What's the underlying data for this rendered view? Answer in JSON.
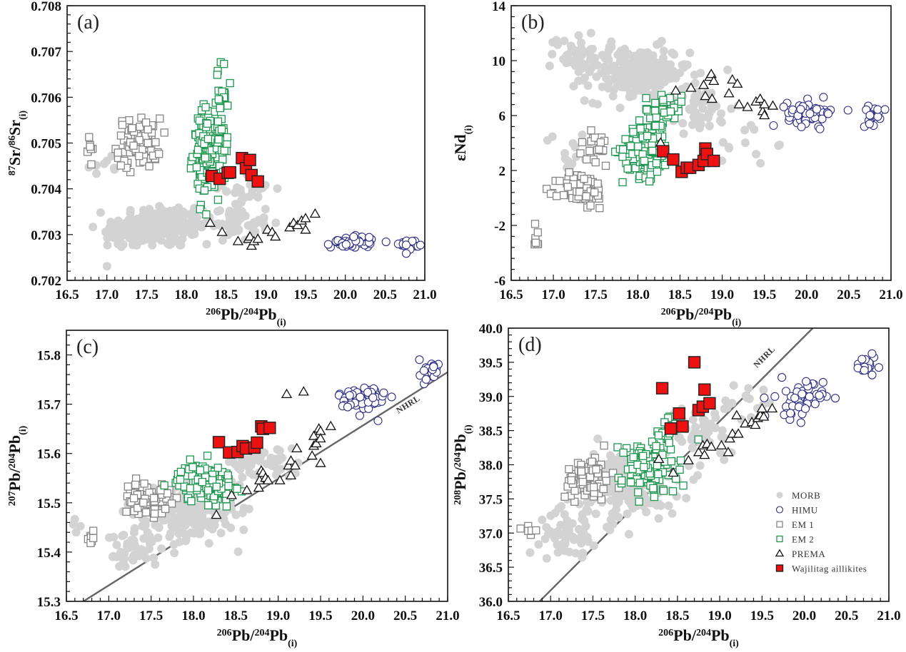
{
  "figure": {
    "legend": {
      "placement": "panel-d-bottom-right",
      "entries": [
        {
          "key": "morb",
          "label": "MORB",
          "marker": "filled-circle",
          "color": "#d3d3d3"
        },
        {
          "key": "himu",
          "label": "HIMU",
          "marker": "open-circle",
          "color": "#2e2e86"
        },
        {
          "key": "em1",
          "label": "EM 1",
          "marker": "open-square",
          "color": "#858585"
        },
        {
          "key": "em2",
          "label": "EM 2",
          "marker": "open-square",
          "color": "#1e9650"
        },
        {
          "key": "prema",
          "label": "PREMA",
          "marker": "open-triangle",
          "color": "#111111"
        },
        {
          "key": "wajilitag",
          "label": "Wajilitag aillikites",
          "marker": "filled-square",
          "color": "#ee1111"
        }
      ]
    }
  },
  "chart_data": [
    {
      "id": "a",
      "type": "scatter",
      "panel_label": "(a)",
      "xlabel": "206Pb/204Pb(i)",
      "ylabel": "87Sr/86Sr(i)",
      "xlim": [
        16.5,
        21.0
      ],
      "ylim": [
        0.702,
        0.708
      ],
      "xticks": [
        "16.5",
        "17.0",
        "17.5",
        "18.0",
        "18.5",
        "19.0",
        "19.5",
        "20.0",
        "20.5",
        "21.0"
      ],
      "yticks": [
        "0.702",
        "0.703",
        "0.704",
        "0.705",
        "0.706",
        "0.707",
        "0.708"
      ],
      "series": {
        "morb": {
          "clusters": [
            [
              17.7,
              0.7032,
              0.55,
              0.00045,
              160
            ],
            [
              17.3,
              0.703,
              0.35,
              0.0003,
              50
            ],
            [
              18.6,
              0.7033,
              0.4,
              0.0004,
              60
            ],
            [
              17.0,
              0.7045,
              0.2,
              0.0004,
              10
            ],
            [
              18.8,
              0.704,
              0.3,
              0.0003,
              20
            ]
          ]
        },
        "himu": {
          "clusters": [
            [
              20.1,
              0.70285,
              0.25,
              0.00012,
              50
            ],
            [
              20.8,
              0.7028,
              0.12,
              0.0001,
              20
            ]
          ]
        },
        "em1": {
          "clusters": [
            [
              17.4,
              0.705,
              0.25,
              0.0005,
              80
            ],
            [
              16.78,
              0.70485,
              0.05,
              0.0002,
              8
            ]
          ]
        },
        "em2": {
          "clusters": [
            [
              18.25,
              0.7048,
              0.15,
              0.0009,
              130
            ],
            [
              18.45,
              0.7055,
              0.06,
              0.0011,
              40
            ]
          ]
        },
        "prema": {
          "points": [
            [
              18.3,
              0.70325
            ],
            [
              18.45,
              0.70305
            ],
            [
              18.65,
              0.70285
            ],
            [
              18.78,
              0.7029
            ],
            [
              18.8,
              0.70295
            ],
            [
              18.82,
              0.70275
            ],
            [
              18.85,
              0.70285
            ],
            [
              18.9,
              0.7029
            ],
            [
              19.02,
              0.7031
            ],
            [
              19.08,
              0.70305
            ],
            [
              19.12,
              0.70295
            ],
            [
              19.3,
              0.70315
            ],
            [
              19.35,
              0.70325
            ],
            [
              19.4,
              0.7032
            ],
            [
              19.45,
              0.7033
            ],
            [
              19.5,
              0.70335
            ],
            [
              19.5,
              0.7031
            ],
            [
              19.62,
              0.70345
            ]
          ]
        },
        "wajilitag": {
          "points": [
            [
              18.32,
              0.70428
            ],
            [
              18.42,
              0.70422
            ],
            [
              18.52,
              0.70435
            ],
            [
              18.55,
              0.70436
            ],
            [
              18.7,
              0.70467
            ],
            [
              18.75,
              0.70445
            ],
            [
              18.8,
              0.70463
            ],
            [
              18.82,
              0.7043
            ],
            [
              18.9,
              0.70416
            ]
          ]
        }
      }
    },
    {
      "id": "b",
      "type": "scatter",
      "panel_label": "(b)",
      "xlabel": "206Pb/204Pb(i)",
      "ylabel": "εNd(i)",
      "xlim": [
        16.5,
        21.0
      ],
      "ylim": [
        -6,
        14
      ],
      "xticks": [
        "16.5",
        "17.0",
        "17.5",
        "18.0",
        "18.5",
        "19.0",
        "19.5",
        "20.0",
        "20.5",
        "21.0"
      ],
      "yticks": [
        "-6",
        "-2",
        "2",
        "6",
        "10",
        "14"
      ],
      "series": {
        "morb": {
          "clusters": [
            [
              18.0,
              9.0,
              0.55,
              1.8,
              220
            ],
            [
              17.3,
              10.5,
              0.3,
              1.5,
              40
            ],
            [
              18.7,
              6.5,
              0.4,
              1.5,
              50
            ],
            [
              17.2,
              3.5,
              0.3,
              2,
              15
            ],
            [
              19.3,
              4,
              0.3,
              1.5,
              12
            ]
          ]
        },
        "himu": {
          "clusters": [
            [
              20.05,
              6.2,
              0.25,
              0.8,
              60
            ],
            [
              20.8,
              6.0,
              0.12,
              0.6,
              18
            ]
          ]
        },
        "em1": {
          "clusters": [
            [
              17.35,
              0.5,
              0.25,
              1.2,
              70
            ],
            [
              17.5,
              3.5,
              0.2,
              1.3,
              20
            ],
            [
              16.8,
              -2.8,
              0.05,
              0.8,
              8
            ]
          ]
        },
        "em2": {
          "clusters": [
            [
              18.1,
              3.5,
              0.25,
              1.8,
              140
            ],
            [
              18.3,
              6.5,
              0.2,
              1.1,
              40
            ]
          ]
        },
        "prema": {
          "points": [
            [
              18.27,
              4.0
            ],
            [
              18.45,
              7.8
            ],
            [
              18.63,
              8.0
            ],
            [
              18.78,
              8.2
            ],
            [
              18.8,
              7.4
            ],
            [
              18.85,
              8.8
            ],
            [
              18.87,
              9.0
            ],
            [
              18.88,
              7.2
            ],
            [
              18.9,
              8.5
            ],
            [
              19.08,
              7.6
            ],
            [
              19.12,
              8.6
            ],
            [
              19.18,
              8.3
            ],
            [
              19.2,
              6.8
            ],
            [
              19.3,
              6.6
            ],
            [
              19.4,
              7.0
            ],
            [
              19.45,
              7.2
            ],
            [
              19.48,
              6.3
            ],
            [
              19.5,
              6.8
            ],
            [
              19.5,
              6.0
            ],
            [
              19.6,
              6.7
            ]
          ]
        },
        "wajilitag": {
          "points": [
            [
              18.3,
              3.4
            ],
            [
              18.42,
              2.8
            ],
            [
              18.52,
              1.9
            ],
            [
              18.58,
              2.2
            ],
            [
              18.62,
              2.2
            ],
            [
              18.72,
              2.4
            ],
            [
              18.78,
              2.7
            ],
            [
              18.8,
              3.6
            ],
            [
              18.82,
              3.2
            ],
            [
              18.9,
              2.7
            ]
          ]
        }
      }
    },
    {
      "id": "c",
      "type": "scatter",
      "panel_label": "(c)",
      "xlabel": "206Pb/204Pb(i)",
      "ylabel": "207Pb/204Pb(i)",
      "xlim": [
        16.5,
        21.0
      ],
      "ylim": [
        15.3,
        15.85
      ],
      "xticks": [
        "16.5",
        "17.0",
        "17.5",
        "18.0",
        "18.5",
        "19.0",
        "19.5",
        "20.0",
        "20.5",
        "21.0"
      ],
      "yticks": [
        "15.3",
        "15.4",
        "15.5",
        "15.6",
        "15.7",
        "15.8"
      ],
      "reference_line": {
        "label": "NHRL",
        "from": [
          16.7,
          15.3
        ],
        "to": [
          21.0,
          15.765
        ]
      },
      "series": {
        "morb": {
          "clusters": [
            [
              17.9,
              15.48,
              0.55,
              0.05,
              200
            ],
            [
              17.3,
              15.4,
              0.3,
              0.04,
              50
            ],
            [
              18.8,
              15.58,
              0.4,
              0.03,
              50
            ],
            [
              16.6,
              15.45,
              0.1,
              0.02,
              6
            ]
          ]
        },
        "himu": {
          "clusters": [
            [
              20.0,
              15.71,
              0.25,
              0.03,
              60
            ],
            [
              20.8,
              15.77,
              0.12,
              0.02,
              20
            ]
          ]
        },
        "em1": {
          "clusters": [
            [
              17.45,
              15.51,
              0.25,
              0.03,
              70
            ],
            [
              16.8,
              15.43,
              0.05,
              0.01,
              8
            ]
          ]
        },
        "em2": {
          "clusters": [
            [
              18.15,
              15.54,
              0.3,
              0.035,
              130
            ]
          ]
        },
        "prema": {
          "points": [
            [
              18.27,
              15.475
            ],
            [
              18.45,
              15.515
            ],
            [
              18.63,
              15.525
            ],
            [
              18.77,
              15.53
            ],
            [
              18.78,
              15.545
            ],
            [
              18.8,
              15.565
            ],
            [
              18.82,
              15.56
            ],
            [
              18.85,
              15.55
            ],
            [
              18.88,
              15.545
            ],
            [
              19.02,
              15.545
            ],
            [
              19.1,
              15.72
            ],
            [
              19.12,
              15.575
            ],
            [
              19.15,
              15.585
            ],
            [
              19.15,
              15.555
            ],
            [
              19.2,
              15.575
            ],
            [
              19.22,
              15.61
            ],
            [
              19.3,
              15.725
            ],
            [
              19.4,
              15.595
            ],
            [
              19.42,
              15.615
            ],
            [
              19.42,
              15.635
            ],
            [
              19.45,
              15.62
            ],
            [
              19.48,
              15.65
            ],
            [
              19.5,
              15.645
            ],
            [
              19.5,
              15.63
            ],
            [
              19.5,
              15.58
            ],
            [
              19.62,
              15.655
            ]
          ]
        },
        "wajilitag": {
          "points": [
            [
              18.3,
              15.623
            ],
            [
              18.42,
              15.602
            ],
            [
              18.52,
              15.603
            ],
            [
              18.58,
              15.615
            ],
            [
              18.62,
              15.61
            ],
            [
              18.72,
              15.612
            ],
            [
              18.75,
              15.622
            ],
            [
              18.8,
              15.655
            ],
            [
              18.82,
              15.65
            ],
            [
              18.9,
              15.652
            ]
          ]
        }
      }
    },
    {
      "id": "d",
      "type": "scatter",
      "panel_label": "(d)",
      "xlabel": "206Pb/204Pb(i)",
      "ylabel": "208Pb/204Pb(i)",
      "xlim": [
        16.5,
        21.0
      ],
      "ylim": [
        36.0,
        40.0
      ],
      "xticks": [
        "16.5",
        "17.0",
        "17.5",
        "18.0",
        "18.5",
        "19.0",
        "19.5",
        "20.0",
        "20.5",
        "21.0"
      ],
      "yticks": [
        "36.0",
        "36.5",
        "37.0",
        "37.5",
        "38.0",
        "38.5",
        "39.0",
        "39.5",
        "40.0"
      ],
      "reference_line": {
        "label": "NHRL",
        "from": [
          16.87,
          36.0
        ],
        "to": [
          20.1,
          40.0
        ]
      },
      "series": {
        "morb": {
          "clusters": [
            [
              17.9,
              37.7,
              0.55,
              0.45,
              200
            ],
            [
              17.2,
              37.0,
              0.3,
              0.3,
              50
            ],
            [
              18.8,
              38.5,
              0.4,
              0.3,
              50
            ],
            [
              19.3,
              38.9,
              0.25,
              0.3,
              15
            ]
          ]
        },
        "himu": {
          "clusters": [
            [
              19.95,
              38.95,
              0.25,
              0.25,
              55
            ],
            [
              20.75,
              39.45,
              0.15,
              0.15,
              20
            ]
          ]
        },
        "em1": {
          "clusters": [
            [
              17.45,
              37.8,
              0.25,
              0.3,
              70
            ],
            [
              16.75,
              37.05,
              0.06,
              0.06,
              6
            ]
          ]
        },
        "em2": {
          "clusters": [
            [
              18.15,
              37.95,
              0.3,
              0.35,
              130
            ],
            [
              18.4,
              38.5,
              0.1,
              0.2,
              20
            ]
          ]
        },
        "prema": {
          "points": [
            [
              18.28,
              38.08
            ],
            [
              18.45,
              37.88
            ],
            [
              18.63,
              38.06
            ],
            [
              18.75,
              38.18
            ],
            [
              18.8,
              38.28
            ],
            [
              18.82,
              38.14
            ],
            [
              18.85,
              38.3
            ],
            [
              18.9,
              38.26
            ],
            [
              19.02,
              38.28
            ],
            [
              19.1,
              38.18
            ],
            [
              19.12,
              38.38
            ],
            [
              19.15,
              38.45
            ],
            [
              19.2,
              38.72
            ],
            [
              19.22,
              38.45
            ],
            [
              19.3,
              38.6
            ],
            [
              19.38,
              38.62
            ],
            [
              19.42,
              38.58
            ],
            [
              19.45,
              38.68
            ],
            [
              19.48,
              38.72
            ],
            [
              19.5,
              38.82
            ],
            [
              19.52,
              38.7
            ],
            [
              19.62,
              38.82
            ]
          ]
        },
        "wajilitag": {
          "points": [
            [
              18.32,
              39.12
            ],
            [
              18.42,
              38.53
            ],
            [
              18.52,
              38.75
            ],
            [
              18.56,
              38.56
            ],
            [
              18.7,
              39.5
            ],
            [
              18.75,
              38.8
            ],
            [
              18.8,
              38.85
            ],
            [
              18.82,
              39.1
            ],
            [
              18.88,
              38.9
            ]
          ]
        }
      }
    }
  ]
}
